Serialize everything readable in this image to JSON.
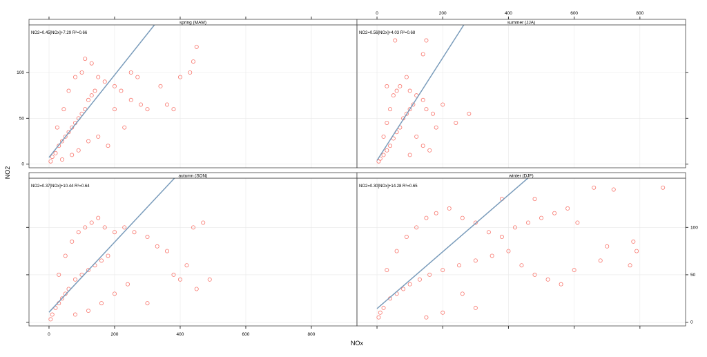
{
  "chart_data": {
    "type": "scatter",
    "xlabel": "NOx",
    "ylabel": "NO2",
    "xlim": [
      -61,
      939
    ],
    "ylim": [
      -4,
      152
    ],
    "xticks": [
      0,
      200,
      400,
      600,
      800
    ],
    "yticks": [
      0,
      50,
      100
    ],
    "grid": true,
    "colors": {
      "points": "#F8766D",
      "line": "#7A9CBB",
      "strip": "#ffffff",
      "grid": "#e8e8e8"
    },
    "panels": [
      {
        "strip": "spring (MAM)",
        "equation": "NO2=0.45[NOx]+7.29 R²=0.66",
        "slope": 0.45,
        "intercept": 7.29,
        "points": [
          [
            5,
            3
          ],
          [
            10,
            8
          ],
          [
            20,
            12
          ],
          [
            30,
            20
          ],
          [
            40,
            25
          ],
          [
            50,
            30
          ],
          [
            60,
            35
          ],
          [
            70,
            40
          ],
          [
            80,
            45
          ],
          [
            90,
            50
          ],
          [
            100,
            55
          ],
          [
            110,
            60
          ],
          [
            120,
            70
          ],
          [
            130,
            75
          ],
          [
            140,
            80
          ],
          [
            25,
            40
          ],
          [
            45,
            60
          ],
          [
            60,
            80
          ],
          [
            80,
            95
          ],
          [
            100,
            100
          ],
          [
            110,
            115
          ],
          [
            130,
            110
          ],
          [
            150,
            95
          ],
          [
            170,
            90
          ],
          [
            200,
            85
          ],
          [
            220,
            80
          ],
          [
            250,
            70
          ],
          [
            280,
            65
          ],
          [
            300,
            60
          ],
          [
            340,
            85
          ],
          [
            360,
            65
          ],
          [
            380,
            60
          ],
          [
            400,
            95
          ],
          [
            430,
            100
          ],
          [
            440,
            112
          ],
          [
            450,
            128
          ],
          [
            250,
            100
          ],
          [
            270,
            95
          ],
          [
            200,
            60
          ],
          [
            230,
            40
          ],
          [
            180,
            20
          ],
          [
            150,
            30
          ],
          [
            120,
            25
          ],
          [
            90,
            15
          ],
          [
            70,
            10
          ],
          [
            40,
            5
          ]
        ]
      },
      {
        "strip": "summer (JJA)",
        "equation": "NO2=0.56[NOx]+4.03 R²=0.68",
        "slope": 0.56,
        "intercept": 4.03,
        "points": [
          [
            5,
            3
          ],
          [
            10,
            6
          ],
          [
            20,
            10
          ],
          [
            30,
            15
          ],
          [
            40,
            20
          ],
          [
            50,
            28
          ],
          [
            60,
            35
          ],
          [
            70,
            40
          ],
          [
            80,
            50
          ],
          [
            90,
            55
          ],
          [
            100,
            60
          ],
          [
            110,
            65
          ],
          [
            20,
            30
          ],
          [
            30,
            45
          ],
          [
            40,
            60
          ],
          [
            50,
            75
          ],
          [
            60,
            80
          ],
          [
            70,
            85
          ],
          [
            90,
            95
          ],
          [
            100,
            80
          ],
          [
            120,
            75
          ],
          [
            140,
            70
          ],
          [
            150,
            60
          ],
          [
            170,
            55
          ],
          [
            180,
            40
          ],
          [
            200,
            65
          ],
          [
            240,
            45
          ],
          [
            280,
            55
          ],
          [
            120,
            30
          ],
          [
            140,
            20
          ],
          [
            160,
            15
          ],
          [
            100,
            10
          ],
          [
            55,
            135
          ],
          [
            150,
            135
          ],
          [
            140,
            120
          ],
          [
            30,
            85
          ]
        ]
      },
      {
        "strip": "autumn (SON)",
        "equation": "NO2=0.37[NOx]+10.44 R²=0.64",
        "slope": 0.37,
        "intercept": 10.44,
        "points": [
          [
            5,
            3
          ],
          [
            10,
            8
          ],
          [
            20,
            15
          ],
          [
            30,
            20
          ],
          [
            40,
            25
          ],
          [
            50,
            30
          ],
          [
            60,
            35
          ],
          [
            80,
            45
          ],
          [
            100,
            50
          ],
          [
            120,
            55
          ],
          [
            140,
            60
          ],
          [
            160,
            65
          ],
          [
            180,
            70
          ],
          [
            30,
            50
          ],
          [
            50,
            70
          ],
          [
            70,
            85
          ],
          [
            90,
            95
          ],
          [
            110,
            100
          ],
          [
            130,
            105
          ],
          [
            150,
            110
          ],
          [
            170,
            100
          ],
          [
            200,
            95
          ],
          [
            230,
            100
          ],
          [
            260,
            95
          ],
          [
            300,
            90
          ],
          [
            330,
            80
          ],
          [
            360,
            75
          ],
          [
            380,
            50
          ],
          [
            400,
            45
          ],
          [
            420,
            60
          ],
          [
            440,
            100
          ],
          [
            450,
            35
          ],
          [
            470,
            105
          ],
          [
            490,
            45
          ],
          [
            240,
            40
          ],
          [
            200,
            30
          ],
          [
            160,
            20
          ],
          [
            120,
            12
          ],
          [
            80,
            8
          ],
          [
            300,
            20
          ]
        ]
      },
      {
        "strip": "winter (DJF)",
        "equation": "NO2=0.30[NOx]+14.28 R²=0.65",
        "slope": 0.3,
        "intercept": 14.28,
        "points": [
          [
            5,
            5
          ],
          [
            10,
            10
          ],
          [
            20,
            15
          ],
          [
            40,
            25
          ],
          [
            60,
            30
          ],
          [
            80,
            35
          ],
          [
            100,
            40
          ],
          [
            130,
            45
          ],
          [
            160,
            50
          ],
          [
            200,
            55
          ],
          [
            250,
            60
          ],
          [
            300,
            65
          ],
          [
            350,
            70
          ],
          [
            400,
            75
          ],
          [
            30,
            55
          ],
          [
            60,
            75
          ],
          [
            90,
            90
          ],
          [
            120,
            100
          ],
          [
            150,
            110
          ],
          [
            180,
            115
          ],
          [
            220,
            120
          ],
          [
            260,
            110
          ],
          [
            300,
            105
          ],
          [
            340,
            95
          ],
          [
            380,
            90
          ],
          [
            420,
            100
          ],
          [
            460,
            105
          ],
          [
            500,
            110
          ],
          [
            540,
            115
          ],
          [
            580,
            120
          ],
          [
            610,
            105
          ],
          [
            440,
            60
          ],
          [
            480,
            50
          ],
          [
            520,
            45
          ],
          [
            560,
            40
          ],
          [
            600,
            55
          ],
          [
            680,
            65
          ],
          [
            700,
            80
          ],
          [
            720,
            140
          ],
          [
            770,
            60
          ],
          [
            780,
            85
          ],
          [
            790,
            75
          ],
          [
            870,
            142
          ],
          [
            660,
            142
          ],
          [
            480,
            130
          ],
          [
            380,
            130
          ],
          [
            260,
            30
          ],
          [
            300,
            15
          ],
          [
            200,
            10
          ],
          [
            150,
            5
          ]
        ]
      }
    ]
  }
}
